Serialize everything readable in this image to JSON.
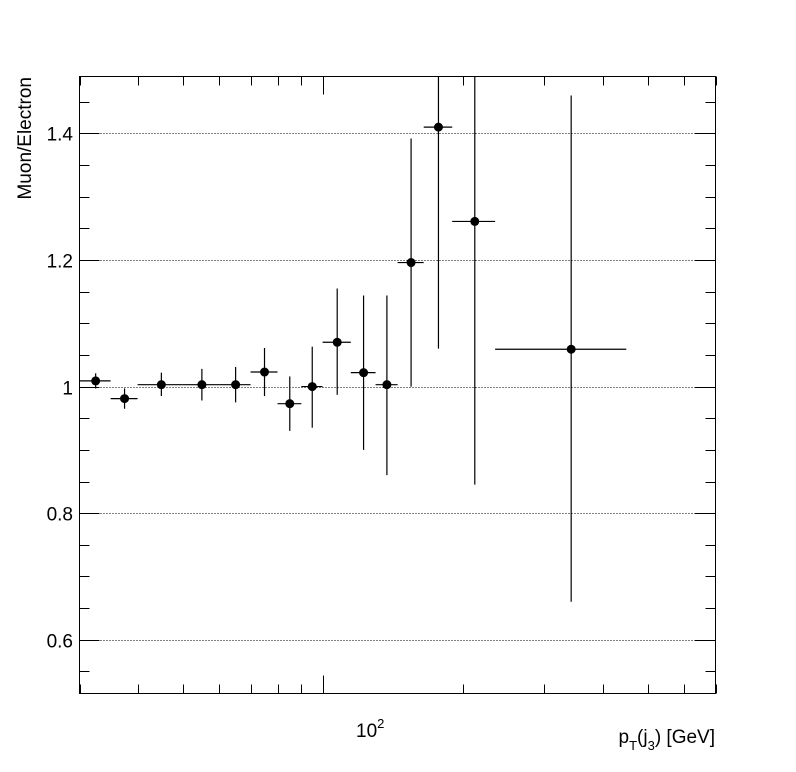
{
  "chart_data": {
    "type": "scatter",
    "title": "",
    "xlabel": "p_T(j_3) [GeV]",
    "xlabel_parts": {
      "p": "p",
      "T": "T",
      "open": "(j",
      "three": "3",
      "close": ") [GeV]"
    },
    "ylabel": "Muon/Electron",
    "x_scale": "log",
    "xlim": [
      30,
      700
    ],
    "ylim": [
      0.515,
      1.49
    ],
    "y_ticks": [
      0.6,
      0.8,
      1.0,
      1.2,
      1.4
    ],
    "y_tick_labels": [
      "0.6",
      "0.8",
      "1",
      "1.2",
      "1.4"
    ],
    "x_tick_label": {
      "base": "10",
      "exp": "2"
    },
    "grid": {
      "y": true,
      "x": false
    },
    "marker_color": "#000000",
    "series": [
      {
        "points": [
          {
            "x": 32.5,
            "xlo": 30,
            "xhi": 35,
            "y": 1.009,
            "ylo": 0.997,
            "yhi": 1.021
          },
          {
            "x": 37.5,
            "xlo": 35,
            "xhi": 40,
            "y": 0.981,
            "ylo": 0.965,
            "yhi": 0.997
          },
          {
            "x": 45,
            "xlo": 40,
            "xhi": 50,
            "y": 1.003,
            "ylo": 0.985,
            "yhi": 1.022
          },
          {
            "x": 55,
            "xlo": 50,
            "xhi": 60,
            "y": 1.003,
            "ylo": 0.978,
            "yhi": 1.028
          },
          {
            "x": 65,
            "xlo": 60,
            "xhi": 70,
            "y": 1.003,
            "ylo": 0.975,
            "yhi": 1.031
          },
          {
            "x": 75,
            "xlo": 70,
            "xhi": 80,
            "y": 1.023,
            "ylo": 0.985,
            "yhi": 1.061
          },
          {
            "x": 85,
            "xlo": 80,
            "xhi": 90,
            "y": 0.973,
            "ylo": 0.93,
            "yhi": 1.016
          },
          {
            "x": 95,
            "xlo": 90,
            "xhi": 100,
            "y": 1.0,
            "ylo": 0.935,
            "yhi": 1.063
          },
          {
            "x": 107.5,
            "xlo": 100,
            "xhi": 115,
            "y": 1.07,
            "ylo": 0.987,
            "yhi": 1.155
          },
          {
            "x": 122.5,
            "xlo": 115,
            "xhi": 130,
            "y": 1.022,
            "ylo": 0.9,
            "yhi": 1.144
          },
          {
            "x": 137.5,
            "xlo": 130,
            "xhi": 145,
            "y": 1.003,
            "ylo": 0.86,
            "yhi": 1.144
          },
          {
            "x": 155,
            "xlo": 145,
            "xhi": 165,
            "y": 1.196,
            "ylo": 1.0,
            "yhi": 1.392
          },
          {
            "x": 177.5,
            "xlo": 165,
            "xhi": 190,
            "y": 1.41,
            "ylo": 1.06,
            "yhi": 1.49
          },
          {
            "x": 212.5,
            "xlo": 190,
            "xhi": 235,
            "y": 1.261,
            "ylo": 0.845,
            "yhi": 1.49
          },
          {
            "x": 342.5,
            "xlo": 235,
            "xhi": 450,
            "y": 1.059,
            "ylo": 0.66,
            "yhi": 1.46
          }
        ]
      }
    ]
  }
}
